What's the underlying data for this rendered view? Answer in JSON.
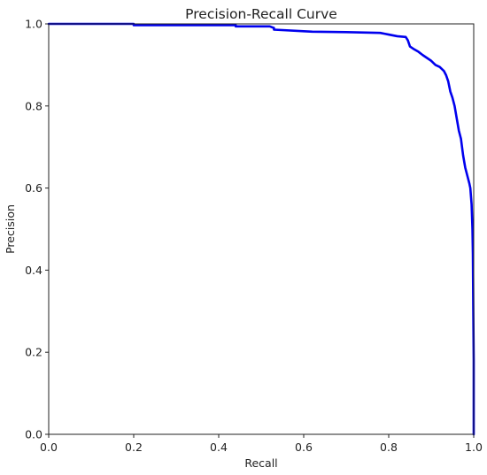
{
  "chart_data": {
    "type": "line",
    "title": "Precision-Recall Curve",
    "xlabel": "Recall",
    "ylabel": "Precision",
    "xlim": [
      0.0,
      1.0
    ],
    "ylim": [
      0.0,
      1.0
    ],
    "xticks": [
      "0.0",
      "0.2",
      "0.4",
      "0.6",
      "0.8",
      "1.0"
    ],
    "yticks": [
      "0.0",
      "0.2",
      "0.4",
      "0.6",
      "0.8",
      "1.0"
    ],
    "grid": false,
    "color": "#0000ee",
    "series": [
      {
        "x": [
          0.0,
          0.1,
          0.2,
          0.2,
          0.3,
          0.44,
          0.44,
          0.52,
          0.53,
          0.53,
          0.6,
          0.62,
          0.7,
          0.78,
          0.79,
          0.8,
          0.82,
          0.84,
          0.845,
          0.85,
          0.86,
          0.87,
          0.88,
          0.89,
          0.9,
          0.91,
          0.92,
          0.93,
          0.935,
          0.94,
          0.945,
          0.95,
          0.955,
          0.96,
          0.965,
          0.97,
          0.975,
          0.98,
          0.985,
          0.99,
          0.992,
          0.995,
          0.997,
          0.998,
          0.999,
          1.0,
          1.0,
          1.0
        ],
        "y": [
          1.0,
          1.0,
          1.0,
          0.997,
          0.997,
          0.997,
          0.994,
          0.994,
          0.99,
          0.986,
          0.982,
          0.981,
          0.98,
          0.978,
          0.976,
          0.974,
          0.97,
          0.968,
          0.96,
          0.945,
          0.938,
          0.932,
          0.924,
          0.917,
          0.91,
          0.9,
          0.895,
          0.885,
          0.875,
          0.86,
          0.835,
          0.82,
          0.8,
          0.77,
          0.74,
          0.72,
          0.68,
          0.65,
          0.63,
          0.61,
          0.6,
          0.56,
          0.5,
          0.44,
          0.3,
          0.18,
          0.05,
          0.0
        ]
      }
    ]
  }
}
